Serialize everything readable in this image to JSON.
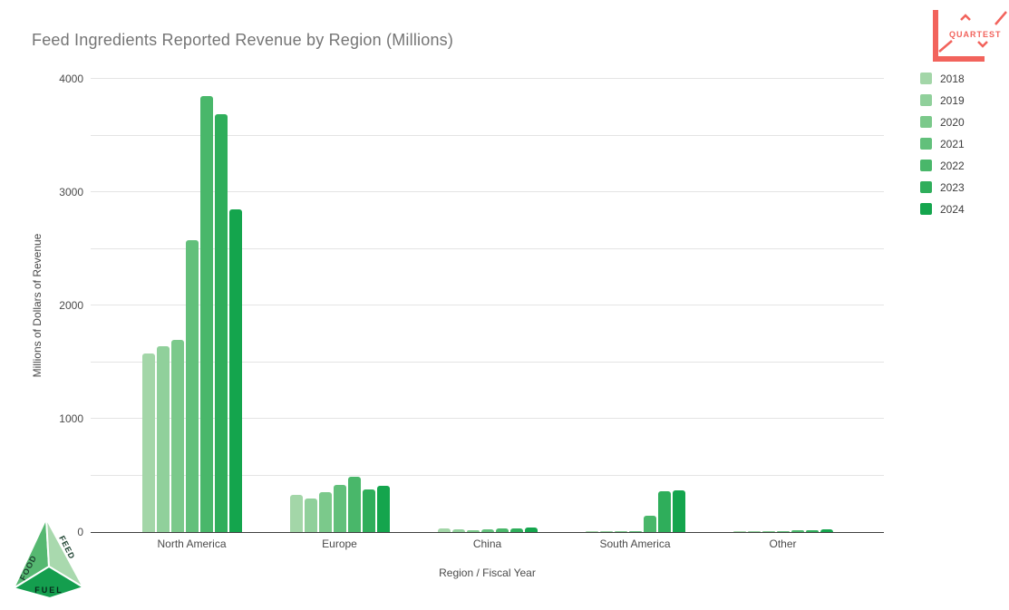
{
  "title": "Feed Ingredients Reported Revenue by Region (Millions)",
  "brand": {
    "logo_text": "QUARTEST",
    "logo_color": "#f2635c",
    "footer_logo": {
      "labels": [
        "FOOD",
        "FEED",
        "FUEL"
      ],
      "colors": {
        "food_face": "#56b871",
        "feed_face": "#a9d9ae",
        "fuel_face": "#149e4e",
        "text": "#1d4230"
      }
    }
  },
  "chart_data": {
    "type": "bar",
    "title": "Feed Ingredients Reported Revenue by Region (Millions)",
    "xlabel": "Region / Fiscal Year",
    "ylabel": "Millions of Dollars of Revenue",
    "categories": [
      "North America",
      "Europe",
      "China",
      "South America",
      "Other"
    ],
    "series": [
      {
        "name": "2018",
        "color": "#a3d6a8",
        "values": [
          1580,
          325,
          30,
          8,
          12
        ]
      },
      {
        "name": "2019",
        "color": "#90d09b",
        "values": [
          1640,
          300,
          25,
          8,
          12
        ]
      },
      {
        "name": "2020",
        "color": "#7bc98b",
        "values": [
          1695,
          350,
          15,
          8,
          12
        ]
      },
      {
        "name": "2021",
        "color": "#62c07b",
        "values": [
          2575,
          420,
          25,
          10,
          12
        ]
      },
      {
        "name": "2022",
        "color": "#49b76a",
        "values": [
          3845,
          490,
          35,
          145,
          14
        ]
      },
      {
        "name": "2023",
        "color": "#2fae5b",
        "values": [
          3690,
          375,
          35,
          360,
          18
        ]
      },
      {
        "name": "2024",
        "color": "#14a54d",
        "values": [
          2850,
          410,
          40,
          370,
          28
        ]
      }
    ],
    "ylim": [
      0,
      4000
    ],
    "yticks": [
      0,
      1000,
      2000,
      3000,
      4000
    ],
    "gridline_step": 500,
    "grid": true,
    "legend_position": "right",
    "background": "#ffffff"
  }
}
